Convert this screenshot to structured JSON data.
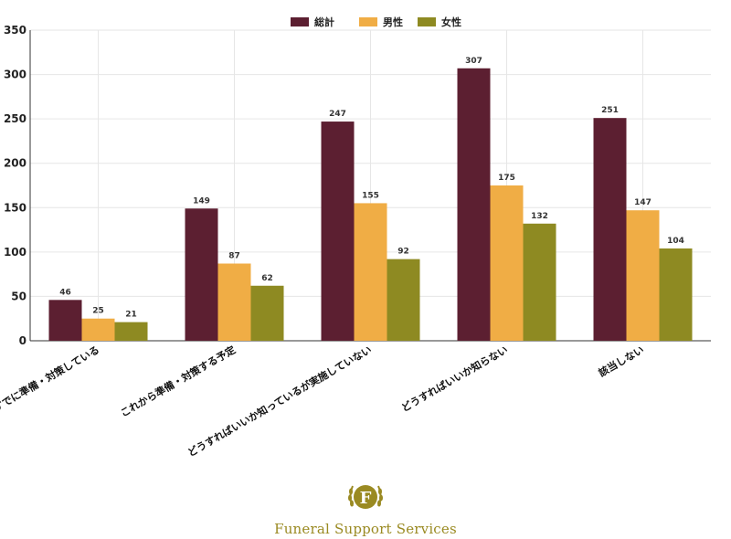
{
  "colors": {
    "total": "#5c1f31",
    "male": "#f0ad45",
    "female": "#8e8a22",
    "logo": "#9a8a22"
  },
  "chart_data": {
    "type": "bar",
    "categories": [
      "すでに準備・対策している",
      "これから準備・対策する予定",
      "どうすればいいか知っているが実施していない",
      "どうすればいいか知らない",
      "該当しない"
    ],
    "series": [
      {
        "name": "総計",
        "values": [
          46,
          149,
          247,
          307,
          251
        ]
      },
      {
        "name": "男性",
        "values": [
          25,
          87,
          155,
          175,
          147
        ]
      },
      {
        "name": "女性",
        "values": [
          21,
          62,
          92,
          132,
          104
        ]
      }
    ],
    "ylim": [
      0,
      350
    ],
    "yticks": [
      0,
      50,
      100,
      150,
      200,
      250,
      300,
      350
    ],
    "grid": true,
    "legend_position": "top-center"
  },
  "logo": {
    "letter": "F",
    "text": "Funeral Support Services"
  }
}
